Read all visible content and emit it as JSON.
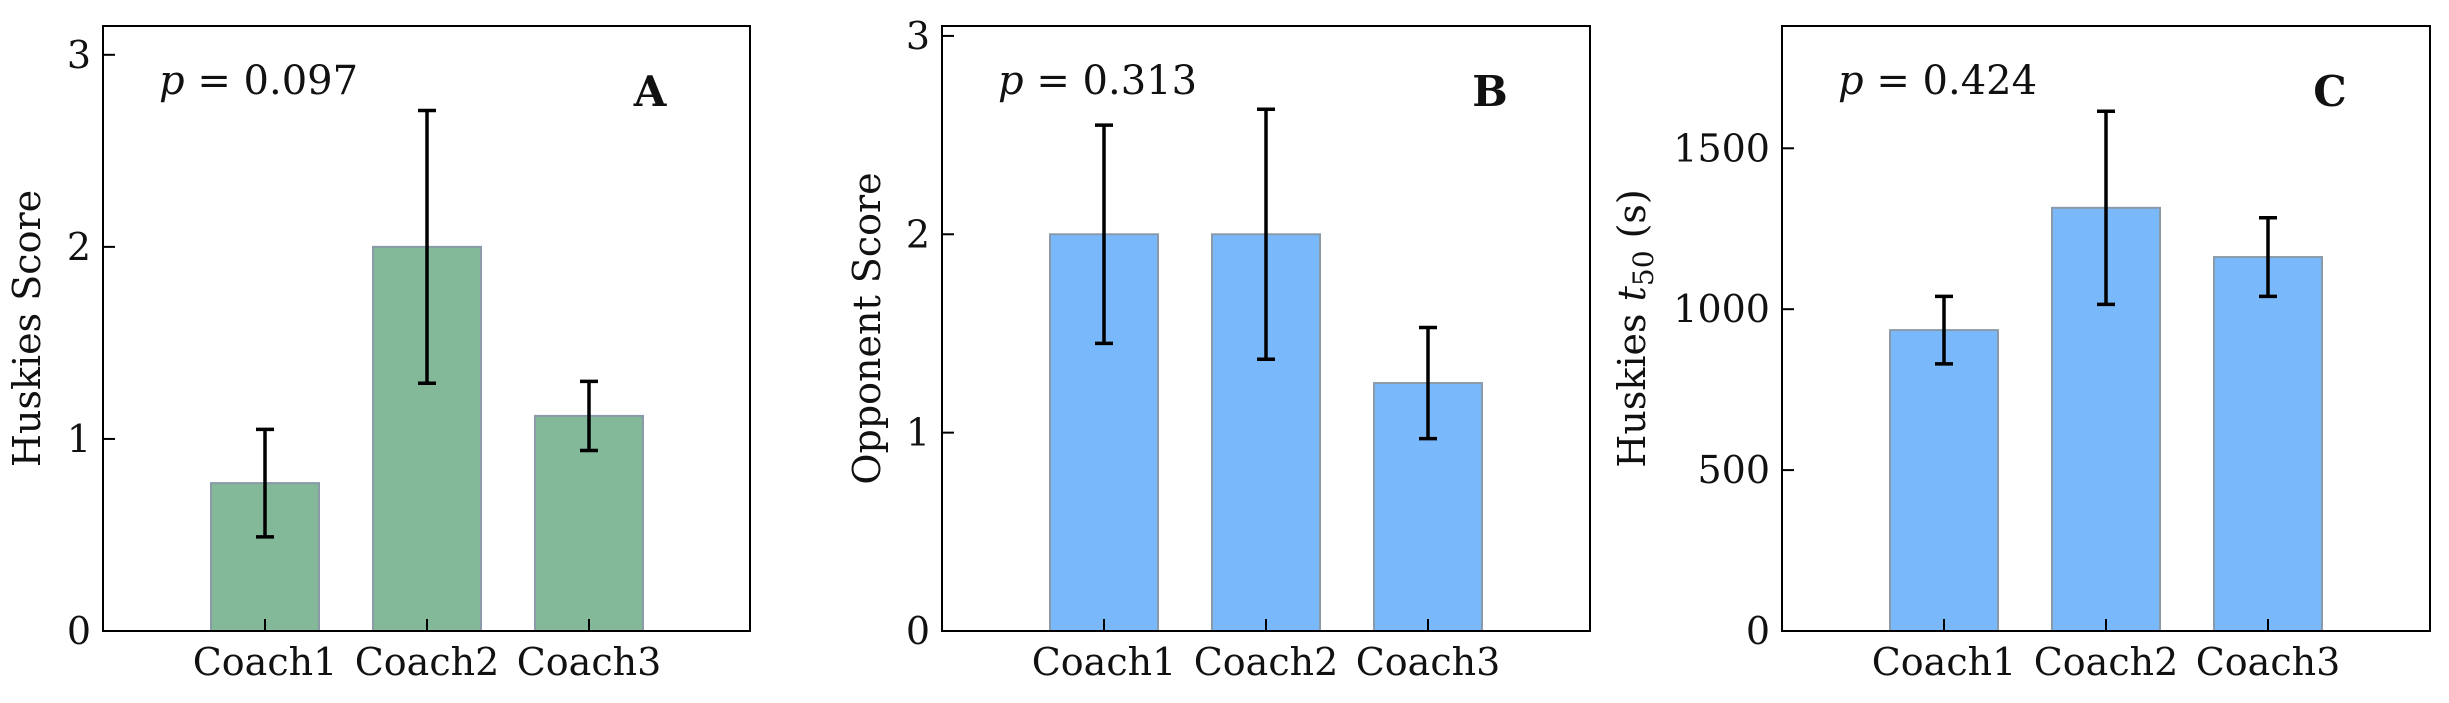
{
  "chart_data": [
    {
      "type": "bar",
      "panel_label": "A",
      "annotation": "p = 0.097",
      "ylabel": "Huskies Score",
      "categories": [
        "Coach1",
        "Coach2",
        "Coach3"
      ],
      "values": [
        0.77,
        2.0,
        1.12
      ],
      "errors": [
        0.28,
        0.71,
        0.18
      ],
      "ylim": [
        0,
        3.15
      ],
      "yticks": [
        0,
        1,
        2,
        3
      ],
      "bar_color": "#83b898"
    },
    {
      "type": "bar",
      "panel_label": "B",
      "annotation": "p = 0.313",
      "ylabel": "Opponent Score",
      "categories": [
        "Coach1",
        "Coach2",
        "Coach3"
      ],
      "values": [
        2.0,
        2.0,
        1.25
      ],
      "errors": [
        0.55,
        0.63,
        0.28
      ],
      "ylim": [
        0,
        3.05
      ],
      "yticks": [
        0,
        1,
        2,
        3
      ],
      "bar_color": "#79b9fb"
    },
    {
      "type": "bar",
      "panel_label": "C",
      "annotation": "p = 0.424",
      "ylabel": "Huskies t50 (s)",
      "categories": [
        "Coach1",
        "Coach2",
        "Coach3"
      ],
      "values": [
        935,
        1315,
        1162
      ],
      "errors": [
        105,
        300,
        122
      ],
      "ylim": [
        0,
        1880
      ],
      "yticks": [
        0,
        500,
        1000,
        1500
      ],
      "bar_color": "#79b9fb"
    }
  ]
}
